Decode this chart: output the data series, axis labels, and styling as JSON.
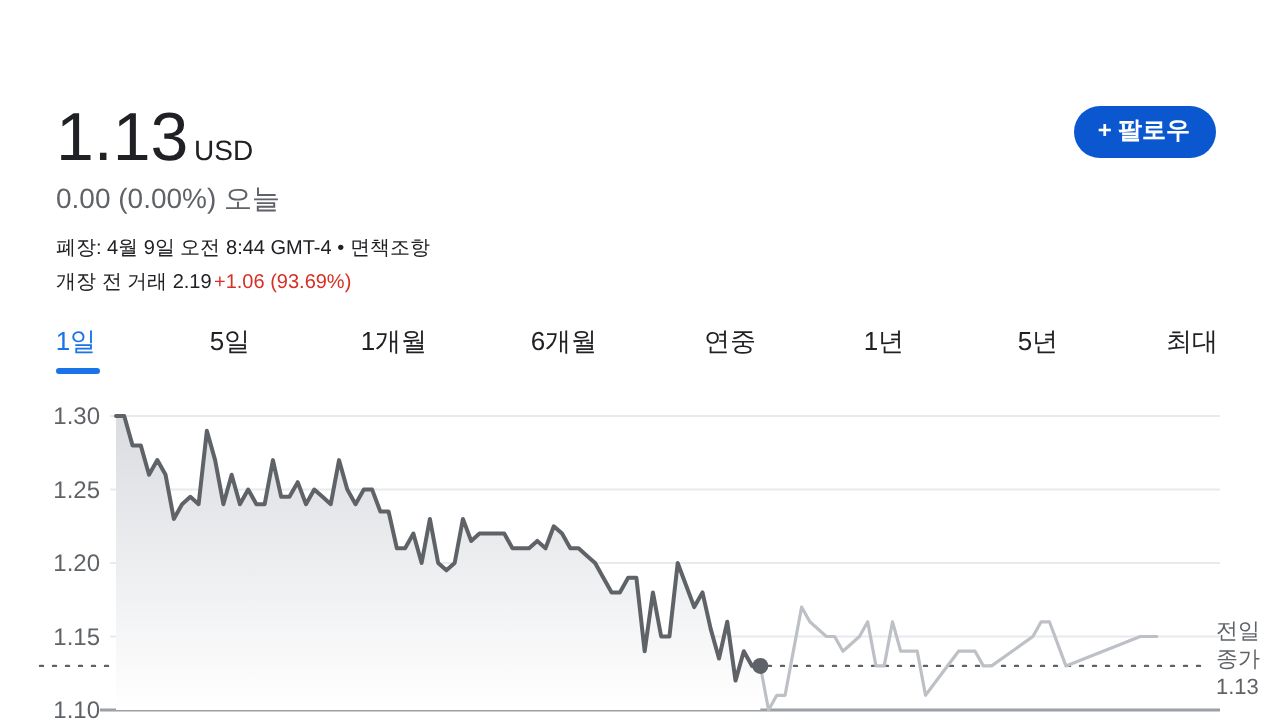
{
  "chart_data": {
    "type": "area",
    "title": "1.13",
    "subtitle": "0.00 (0.00%) 오늘",
    "annotations": [
      "USD",
      "폐장: 4월 9일 오전 8:44 GMT-4 • 면책조항",
      "개장 전 거래 2.19",
      "+1.06 (93.69%)",
      "1일",
      "5일",
      "1개월",
      "6개월",
      "연중",
      "1년",
      "5년",
      "최대",
      "+ 팔로우"
    ],
    "categories": [
      null,
      null,
      null,
      null,
      null,
      null,
      null,
      null,
      null,
      null,
      null,
      null,
      null,
      null,
      null,
      null,
      null,
      null,
      null,
      null,
      null,
      null,
      null,
      null,
      null,
      null,
      null,
      null,
      null,
      null,
      null,
      null,
      null,
      null,
      null,
      null,
      null,
      null,
      null,
      null,
      null,
      null,
      null,
      null,
      null,
      null,
      null,
      null,
      null,
      null,
      null,
      null,
      null,
      null,
      null,
      null,
      null,
      null,
      null,
      null,
      null,
      null,
      null,
      null,
      null,
      null,
      null,
      null,
      null,
      null,
      null,
      null,
      null,
      null,
      null,
      null,
      null,
      null,
      null,
      null,
      null,
      null,
      null,
      null,
      null,
      null,
      null,
      null,
      null,
      null,
      null,
      null,
      null,
      null,
      null,
      null,
      null,
      null,
      null,
      null,
      null,
      null,
      null,
      null,
      null,
      null,
      null,
      null,
      null,
      null,
      null,
      null,
      null,
      null,
      null,
      null,
      null,
      null,
      null,
      null,
      null,
      null,
      null,
      null,
      null,
      null,
      null
    ],
    "series": [
      {
        "color": "#5f6368",
        "values": [
          1.3,
          1.3,
          1.28,
          1.28,
          1.26,
          1.27,
          1.26,
          1.23,
          1.24,
          1.245,
          1.24,
          1.29,
          1.27,
          1.24,
          1.26,
          1.24,
          1.25,
          1.24,
          1.24,
          1.27,
          1.245,
          1.245,
          1.255,
          1.24,
          1.25,
          1.245,
          1.24,
          1.27,
          1.25,
          1.24,
          1.25,
          1.25,
          1.235,
          1.235,
          1.21,
          1.21,
          1.22,
          1.2,
          1.23,
          1.2,
          1.195,
          1.2,
          1.23,
          1.215,
          1.22,
          1.22,
          1.22,
          1.22,
          1.21,
          1.21,
          1.21,
          1.215,
          1.21,
          1.225,
          1.22,
          1.21,
          1.21,
          1.205,
          1.2,
          1.19,
          1.18,
          1.18,
          1.19,
          1.19,
          1.14,
          1.18,
          1.15,
          1.15,
          1.2,
          1.185,
          1.17,
          1.18,
          1.155,
          1.135,
          1.16,
          1.12,
          1.14,
          1.13,
          1.13,
          null,
          null,
          null,
          null,
          null,
          null,
          null,
          null,
          null,
          null,
          null,
          null,
          null,
          null,
          null,
          null,
          null,
          null,
          null,
          null,
          null,
          null,
          null,
          null,
          null,
          null,
          null,
          null,
          null,
          null,
          null,
          null,
          null,
          null,
          null,
          null,
          null,
          null,
          null,
          null,
          null,
          null,
          null,
          null,
          null,
          null,
          null,
          null
        ]
      },
      {
        "type": "line",
        "color": "#bdc1c6",
        "values": [
          null,
          null,
          null,
          null,
          null,
          null,
          null,
          null,
          null,
          null,
          null,
          null,
          null,
          null,
          null,
          null,
          null,
          null,
          null,
          null,
          null,
          null,
          null,
          null,
          null,
          null,
          null,
          null,
          null,
          null,
          null,
          null,
          null,
          null,
          null,
          null,
          null,
          null,
          null,
          null,
          null,
          null,
          null,
          null,
          null,
          null,
          null,
          null,
          null,
          null,
          null,
          null,
          null,
          null,
          null,
          null,
          null,
          null,
          null,
          null,
          null,
          null,
          null,
          null,
          null,
          null,
          null,
          null,
          null,
          null,
          null,
          null,
          null,
          null,
          null,
          null,
          null,
          null,
          1.13,
          1.1,
          1.11,
          1.11,
          null,
          1.17,
          1.16,
          null,
          1.15,
          1.15,
          1.14,
          null,
          1.15,
          1.16,
          1.13,
          1.13,
          1.16,
          1.14,
          null,
          1.14,
          1.11,
          null,
          null,
          null,
          1.14,
          null,
          1.14,
          1.13,
          1.13,
          null,
          null,
          null,
          null,
          1.15,
          1.16,
          1.16,
          null,
          1.13,
          null,
          null,
          null,
          null,
          null,
          null,
          null,
          null,
          1.15,
          1.15,
          1.15
        ]
      },
      {
        "type": "scatter",
        "color": "#5f6368",
        "values": [
          null,
          null,
          null,
          null,
          null,
          null,
          null,
          null,
          null,
          null,
          null,
          null,
          null,
          null,
          null,
          null,
          null,
          null,
          null,
          null,
          null,
          null,
          null,
          null,
          null,
          null,
          null,
          null,
          null,
          null,
          null,
          null,
          null,
          null,
          null,
          null,
          null,
          null,
          null,
          null,
          null,
          null,
          null,
          null,
          null,
          null,
          null,
          null,
          null,
          null,
          null,
          null,
          null,
          null,
          null,
          null,
          null,
          null,
          null,
          null,
          null,
          null,
          null,
          null,
          null,
          null,
          null,
          null,
          null,
          null,
          null,
          null,
          null,
          null,
          null,
          null,
          null,
          null,
          1.13,
          null,
          null,
          null,
          null,
          null,
          null,
          null,
          null,
          null,
          null,
          null,
          null,
          null,
          null,
          null,
          null,
          null,
          null,
          null,
          null,
          null,
          null,
          null,
          null,
          null,
          null,
          null,
          null,
          null,
          null,
          null,
          null,
          null,
          null,
          null,
          null,
          null,
          null,
          null,
          null,
          null,
          null,
          null,
          null,
          null,
          null,
          null,
          null
        ]
      }
    ],
    "ylim": [
      1.1,
      1.3
    ],
    "yticks": [
      {
        "value": 1.1,
        "label": "1.10"
      },
      1.15,
      {
        "value": 1.2,
        "label": "1.20"
      },
      1.25,
      {
        "value": 1.3,
        "label": "1.30"
      }
    ],
    "grid": "y",
    "ref_lines": [
      {
        "axis": "y",
        "value": 1.13,
        "label": "전일 종가 1.13",
        "color": "#5f6368",
        "line_style": "dotted"
      }
    ]
  }
}
